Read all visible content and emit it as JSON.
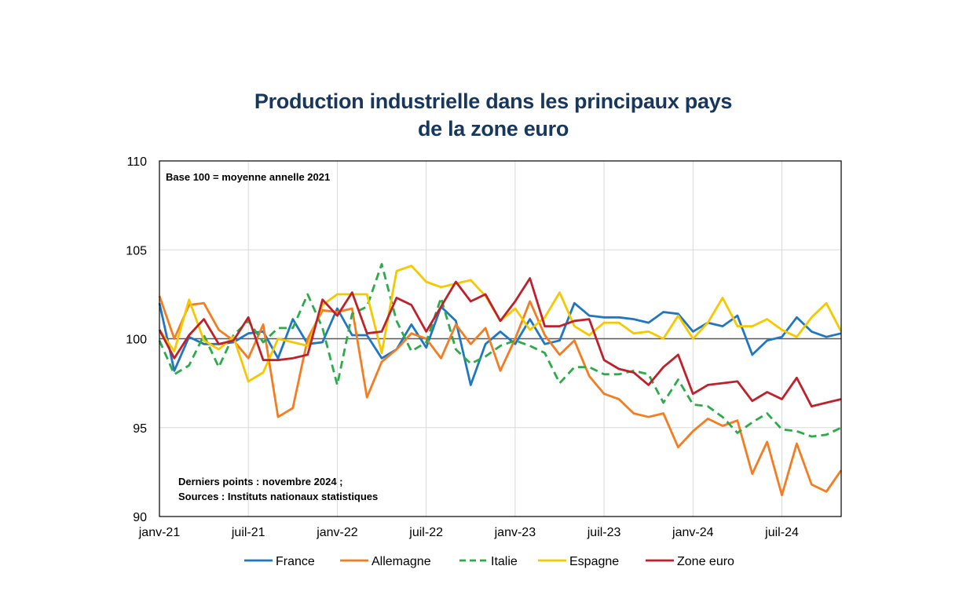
{
  "chart_data": {
    "type": "line",
    "title": [
      "Production industrielle dans les principaux pays",
      "de la zone euro"
    ],
    "base_note": "Base 100 = moyenne annelle 2021",
    "source_note": [
      "Derniers points : novembre 2024 ;",
      "Sources : Instituts nationaux statistiques"
    ],
    "ylim": [
      90,
      110
    ],
    "yticks": [
      90,
      95,
      100,
      105,
      110
    ],
    "reference_line": 100,
    "xlabels": [
      {
        "index": 0,
        "label": "janv-21"
      },
      {
        "index": 6,
        "label": "juil-21"
      },
      {
        "index": 12,
        "label": "janv-22"
      },
      {
        "index": 18,
        "label": "juil-22"
      },
      {
        "index": 24,
        "label": "janv-23"
      },
      {
        "index": 30,
        "label": "juil-23"
      },
      {
        "index": 36,
        "label": "janv-24"
      },
      {
        "index": 42,
        "label": "juil-24"
      }
    ],
    "n_points": 47,
    "series": [
      {
        "name": "France",
        "color": "#1f77c4",
        "dashed": false,
        "values": [
          102.0,
          98.2,
          100.1,
          99.7,
          99.7,
          99.8,
          100.3,
          100.4,
          98.9,
          101.1,
          99.7,
          99.8,
          101.7,
          100.2,
          100.2,
          98.9,
          99.4,
          100.8,
          99.5,
          101.8,
          101.0,
          97.4,
          99.7,
          100.4,
          99.7,
          101.1,
          99.7,
          99.9,
          102.0,
          101.3,
          101.2,
          101.2,
          101.1,
          100.9,
          101.5,
          101.4,
          100.4,
          100.9,
          100.7,
          101.3,
          99.1,
          99.9,
          100.1,
          101.2,
          100.4,
          100.1,
          100.3
        ]
      },
      {
        "name": "Allemagne",
        "color": "#f57c20",
        "dashed": false,
        "values": [
          102.4,
          100.0,
          101.9,
          102.0,
          100.5,
          99.9,
          98.9,
          100.8,
          95.6,
          96.1,
          100.0,
          101.6,
          101.5,
          101.7,
          96.7,
          98.7,
          99.4,
          100.3,
          100.0,
          98.9,
          100.8,
          99.7,
          100.6,
          98.2,
          100.0,
          102.1,
          100.2,
          99.1,
          99.9,
          97.9,
          96.9,
          96.6,
          95.8,
          95.6,
          95.8,
          93.9,
          94.8,
          95.5,
          95.1,
          95.4,
          92.4,
          94.2,
          91.2,
          94.1,
          91.8,
          91.4,
          92.6
        ]
      },
      {
        "name": "Italie",
        "color": "#2bab4a",
        "dashed": true,
        "values": [
          99.9,
          98.0,
          98.5,
          100.2,
          98.4,
          100.2,
          101.0,
          99.8,
          100.6,
          100.6,
          102.5,
          100.6,
          97.4,
          101.4,
          101.8,
          104.2,
          101.0,
          99.3,
          99.8,
          102.3,
          99.4,
          98.6,
          99.0,
          99.6,
          99.9,
          99.6,
          99.2,
          97.5,
          98.4,
          98.4,
          98.0,
          98.0,
          98.2,
          98.0,
          96.4,
          97.7,
          96.3,
          96.2,
          95.6,
          94.7,
          95.3,
          95.8,
          94.9,
          94.8,
          94.5,
          94.6,
          95.0
        ]
      },
      {
        "name": "Espagne",
        "color": "#f5c800",
        "dashed": false,
        "values": [
          100.5,
          99.3,
          102.2,
          99.9,
          99.4,
          100.1,
          97.6,
          98.1,
          100.0,
          99.8,
          99.6,
          101.9,
          102.5,
          102.5,
          102.5,
          99.2,
          103.8,
          104.1,
          103.2,
          102.9,
          103.1,
          103.3,
          102.4,
          101.0,
          101.7,
          100.5,
          101.2,
          102.6,
          100.7,
          100.2,
          100.9,
          100.9,
          100.3,
          100.4,
          100.0,
          101.3,
          100.0,
          100.9,
          102.3,
          100.7,
          100.7,
          101.1,
          100.5,
          100.1,
          101.2,
          102.0,
          100.4
        ]
      },
      {
        "name": "Zone euro",
        "color": "#c0202a",
        "dashed": false,
        "values": [
          100.5,
          98.9,
          100.2,
          101.1,
          99.7,
          99.9,
          101.2,
          98.8,
          98.8,
          98.9,
          99.1,
          102.2,
          101.3,
          102.6,
          100.3,
          100.4,
          102.3,
          101.9,
          100.4,
          101.8,
          103.2,
          102.1,
          102.5,
          101.0,
          102.1,
          103.4,
          100.7,
          100.7,
          101.0,
          101.1,
          98.8,
          98.3,
          98.1,
          97.4,
          98.4,
          99.1,
          96.9,
          97.4,
          97.5,
          97.6,
          96.5,
          97.0,
          96.6,
          97.8,
          96.2,
          96.4,
          96.6
        ]
      }
    ]
  }
}
